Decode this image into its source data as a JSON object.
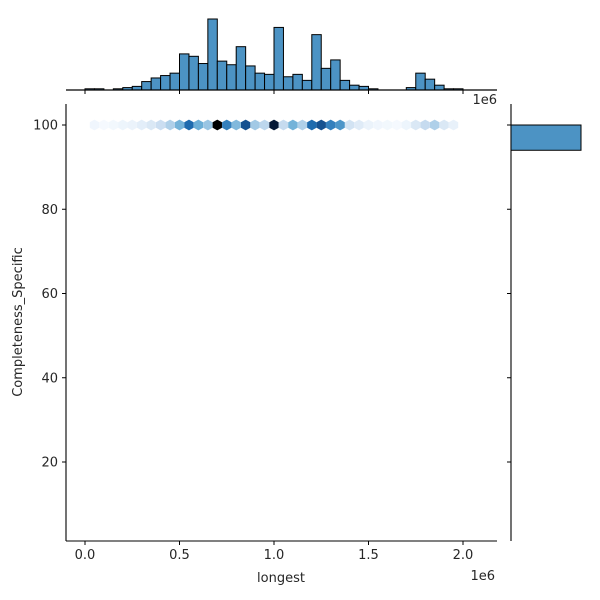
{
  "chart_data": {
    "type": "hexbin_jointplot",
    "title": "",
    "xlabel": "longest",
    "ylabel": "Completeness_Specific",
    "x_offset_label": "1e6",
    "top_offset_label": "1e6",
    "xticks": [
      0.0,
      0.5,
      1.0,
      1.5,
      2.0
    ],
    "xtick_labels": [
      "0.0",
      "0.5",
      "1.0",
      "1.5",
      "2.0"
    ],
    "yticks": [
      20,
      40,
      60,
      80,
      100
    ],
    "ytick_labels": [
      "20",
      "40",
      "60",
      "80",
      "100"
    ],
    "xlim": [
      -0.1,
      2.17
    ],
    "ylim": [
      1,
      105
    ],
    "x_scale_multiplier": 1000000,
    "grid": false,
    "color": "#4c93c4",
    "hexbin": {
      "y": 100,
      "x_centers": [
        0.05,
        0.1,
        0.15,
        0.2,
        0.25,
        0.3,
        0.35,
        0.4,
        0.45,
        0.5,
        0.55,
        0.6,
        0.65,
        0.7,
        0.75,
        0.8,
        0.85,
        0.9,
        0.95,
        1.0,
        1.05,
        1.1,
        1.15,
        1.2,
        1.25,
        1.3,
        1.35,
        1.4,
        1.45,
        1.5,
        1.55,
        1.6,
        1.65,
        1.7,
        1.75,
        1.8,
        1.85,
        1.9,
        1.95
      ],
      "relative_density": [
        0.03,
        0.01,
        0.02,
        0.04,
        0.05,
        0.08,
        0.12,
        0.18,
        0.25,
        0.38,
        0.62,
        0.4,
        0.3,
        1.0,
        0.55,
        0.35,
        0.7,
        0.28,
        0.22,
        0.9,
        0.2,
        0.38,
        0.25,
        0.62,
        0.7,
        0.55,
        0.48,
        0.15,
        0.1,
        0.05,
        0.03,
        0.02,
        0.01,
        0.04,
        0.12,
        0.2,
        0.25,
        0.12,
        0.06
      ]
    },
    "top_marginal": {
      "type": "histogram",
      "bin_width": 0.05,
      "bin_starts": [
        0.0,
        0.05,
        0.1,
        0.15,
        0.2,
        0.25,
        0.3,
        0.35,
        0.4,
        0.45,
        0.5,
        0.55,
        0.6,
        0.65,
        0.7,
        0.75,
        0.8,
        0.85,
        0.9,
        0.95,
        1.0,
        1.05,
        1.1,
        1.15,
        1.2,
        1.25,
        1.3,
        1.35,
        1.4,
        1.45,
        1.5,
        1.55,
        1.6,
        1.65,
        1.7,
        1.75,
        1.8,
        1.85,
        1.9,
        1.95,
        2.0
      ],
      "relative_heights": [
        1,
        1,
        0,
        1,
        2,
        3,
        7,
        10,
        12,
        14,
        30,
        28,
        22,
        59,
        24,
        21,
        36,
        20,
        14,
        13,
        52,
        11,
        13,
        8,
        46,
        18,
        25,
        8,
        4,
        3,
        1,
        0,
        0,
        0,
        2,
        14,
        9,
        4,
        1,
        1,
        0
      ]
    },
    "right_marginal": {
      "type": "histogram",
      "bins": [
        {
          "y_start": 94,
          "y_end": 100,
          "relative_width": 1.0
        }
      ]
    }
  }
}
